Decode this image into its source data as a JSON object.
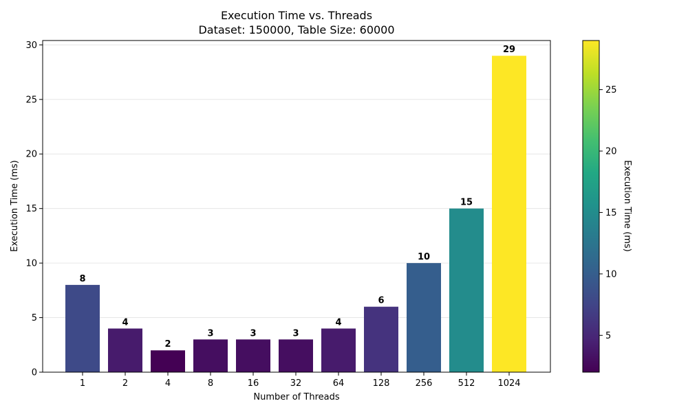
{
  "chart_data": {
    "type": "bar",
    "title": "Execution Time vs. Threads",
    "subtitle": "Dataset: 150000, Table Size: 60000",
    "xlabel": "Number of Threads",
    "ylabel": "Execution Time (ms)",
    "categories": [
      "1",
      "2",
      "4",
      "8",
      "16",
      "32",
      "64",
      "128",
      "256",
      "512",
      "1024"
    ],
    "values": [
      8,
      4,
      2,
      3,
      3,
      3,
      4,
      6,
      10,
      15,
      29
    ],
    "data_labels": [
      "8",
      "4",
      "2",
      "3",
      "3",
      "3",
      "4",
      "6",
      "10",
      "15",
      "29"
    ],
    "ylim": [
      0,
      30.4
    ],
    "yticks": [
      0,
      5,
      10,
      15,
      20,
      25,
      30
    ],
    "ytick_labels": [
      "0",
      "5",
      "10",
      "15",
      "20",
      "25",
      "30"
    ],
    "grid": "y-axis, light",
    "colorscale": "viridis",
    "colorbar": {
      "label": "Execution Time (ms)",
      "range": [
        2,
        29
      ],
      "ticks": [
        5,
        10,
        15,
        20,
        25
      ],
      "tick_labels": [
        "5",
        "10",
        "15",
        "20",
        "25"
      ],
      "placement": "right"
    }
  }
}
